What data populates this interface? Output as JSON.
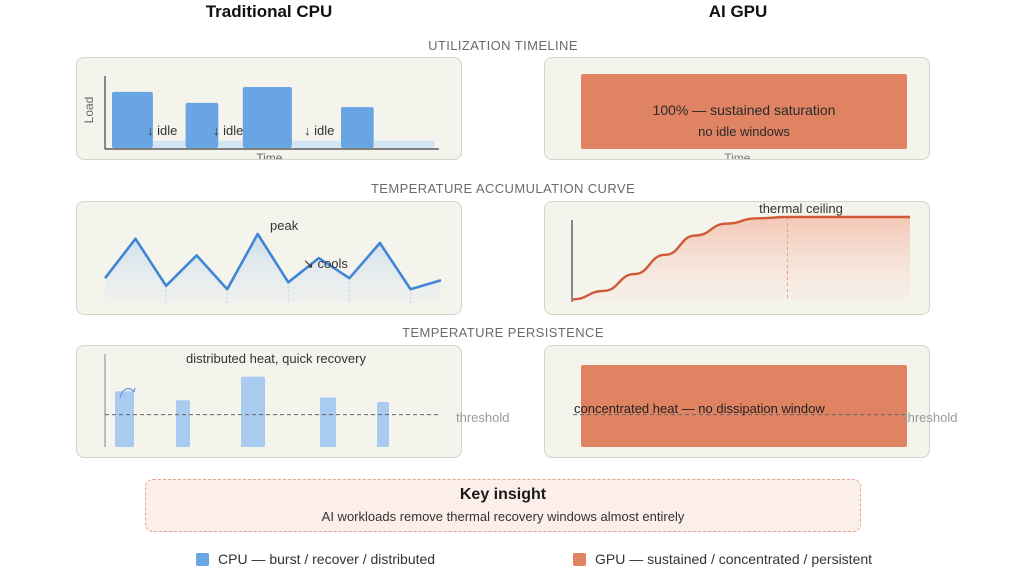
{
  "columns": {
    "cpu_title": "Traditional CPU",
    "gpu_title": "AI GPU"
  },
  "sections": {
    "utilization": "UTILIZATION TIMELINE",
    "accumulation": "TEMPERATURE ACCUMULATION CURVE",
    "persistence": "TEMPERATURE PERSISTENCE"
  },
  "utilization": {
    "cpu": {
      "y_label": "Load",
      "x_label": "Time →",
      "idle_label": "↓ idle",
      "bars": [
        {
          "load": 0.92,
          "width": 1.0
        },
        {
          "load": 0.12,
          "width": 0.8
        },
        {
          "load": 0.74,
          "width": 0.8
        },
        {
          "load": 0.12,
          "width": 0.6
        },
        {
          "load": 1.0,
          "width": 1.2
        },
        {
          "load": 0.12,
          "width": 1.2
        },
        {
          "load": 0.67,
          "width": 0.8
        },
        {
          "load": 0.12,
          "width": 1.5
        }
      ]
    },
    "gpu": {
      "main_text": "100% — sustained saturation",
      "sub_text": "no idle windows",
      "x_label": "Time →",
      "load": 1.0
    }
  },
  "accumulation": {
    "cpu": {
      "peak_label": "peak",
      "cools_label": "↘ cools",
      "points": [
        0.36,
        0.93,
        0.25,
        0.69,
        0.2,
        1.0,
        0.3,
        0.65,
        0.36,
        0.87,
        0.2,
        0.33
      ]
    },
    "gpu": {
      "ceiling_label": "thermal ceiling",
      "points": [
        0.02,
        0.12,
        0.32,
        0.55,
        0.78,
        0.92,
        0.985,
        1.0,
        1.0,
        1.0,
        1.0,
        1.0
      ]
    }
  },
  "persistence": {
    "cpu": {
      "caption": "distributed heat, quick recovery",
      "threshold_label": "threshold",
      "threshold": 0.36,
      "bars": [
        0.62,
        0.52,
        0.78,
        0.55,
        0.5
      ],
      "recovery_icon": "recovery-arrow-icon"
    },
    "gpu": {
      "caption": "concentrated heat — no dissipation window",
      "threshold_label": "threshold",
      "threshold": 0.36,
      "level": 1.0
    }
  },
  "insight": {
    "title": "Key insight",
    "text": "AI workloads remove thermal recovery windows almost entirely"
  },
  "legend": {
    "cpu_label": "CPU — burst / recover / distributed",
    "gpu_label": "GPU — sustained / concentrated / persistent"
  },
  "colors": {
    "cpu": "#6aa5e3",
    "cpu_light": "#d3e5f5",
    "cpu_line": "#3f86d4",
    "gpu": "#e08362",
    "gpu_line": "#cf5a36",
    "gpu_fill": "#f6d6c8",
    "axis": "#5a5a5a"
  }
}
